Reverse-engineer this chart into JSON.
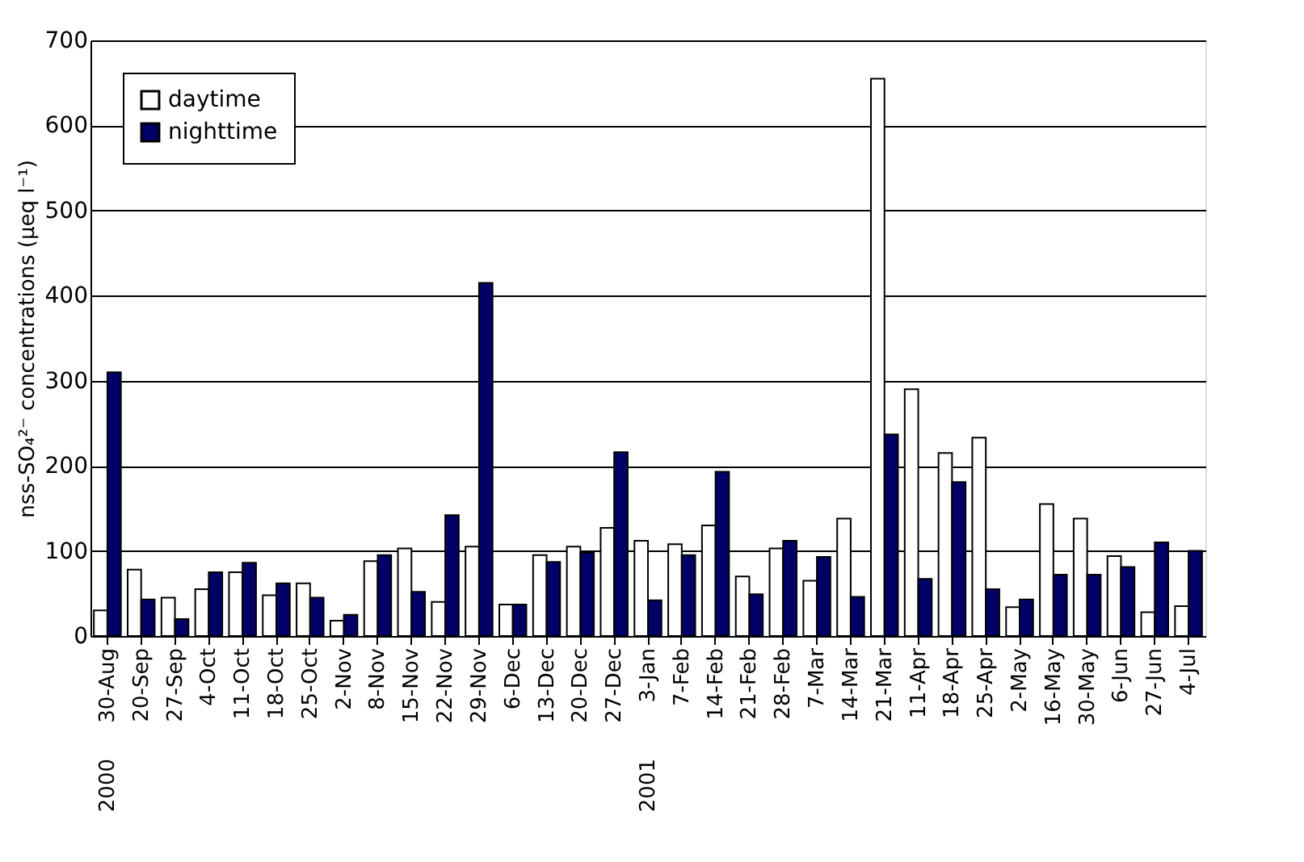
{
  "chart_data": {
    "type": "bar",
    "ylabel": "nss-SO₄²⁻ concentrations (μeq l⁻¹)",
    "categories": [
      "30-Aug",
      "20-Sep",
      "27-Sep",
      "4-Oct",
      "11-Oct",
      "18-Oct",
      "25-Oct",
      "2-Nov",
      "8-Nov",
      "15-Nov",
      "22-Nov",
      "29-Nov",
      "6-Dec",
      "13-Dec",
      "20-Dec",
      "27-Dec",
      "3-Jan",
      "7-Feb",
      "14-Feb",
      "21-Feb",
      "28-Feb",
      "7-Mar",
      "14-Mar",
      "21-Mar",
      "11-Apr",
      "18-Apr",
      "25-Apr",
      "2-May",
      "16-May",
      "30-May",
      "6-Jun",
      "27-Jun",
      "4-Jul"
    ],
    "series": [
      {
        "name": "daytime",
        "color": "#ffffff",
        "values": [
          30,
          78,
          45,
          55,
          75,
          48,
          62,
          18,
          88,
          103,
          40,
          105,
          37,
          95,
          105,
          127,
          112,
          108,
          130,
          70,
          103,
          65,
          138,
          655,
          290,
          215,
          233,
          34,
          155,
          138,
          94,
          28,
          35
        ]
      },
      {
        "name": "nighttime",
        "color": "#000066",
        "values": [
          310,
          43,
          20,
          75,
          86,
          62,
          45,
          25,
          95,
          52,
          142,
          415,
          37,
          87,
          98,
          216,
          42,
          95,
          193,
          49,
          112,
          93,
          46,
          237,
          67,
          181,
          55,
          43,
          72,
          72,
          81,
          110,
          100
        ]
      }
    ],
    "ylim": [
      0,
      700
    ],
    "yticks": [
      0,
      100,
      200,
      300,
      400,
      500,
      600,
      700
    ],
    "grid": "y",
    "legend": "top left",
    "annotations": [
      "2000",
      "2001"
    ]
  }
}
